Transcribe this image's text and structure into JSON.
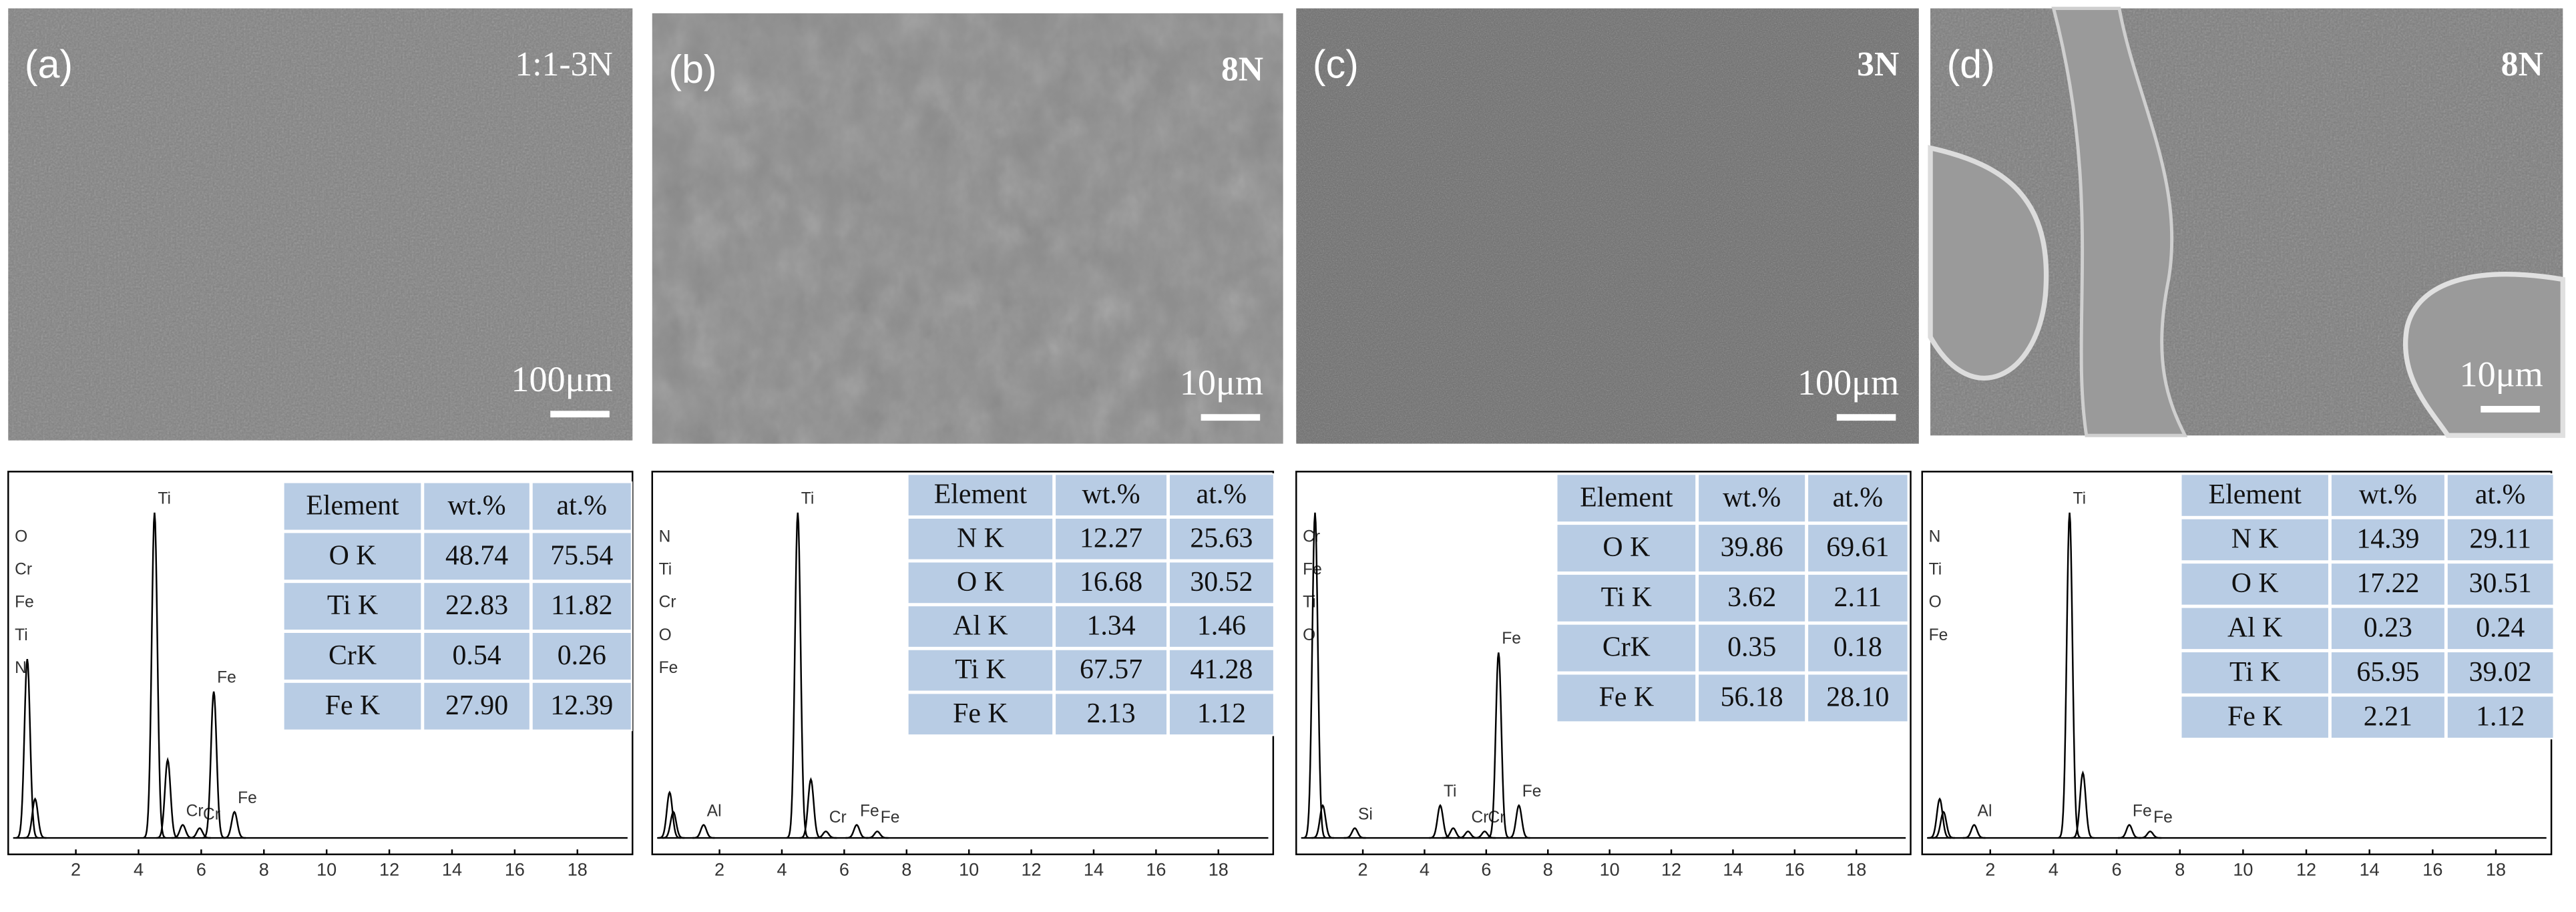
{
  "panels": [
    {
      "label": "(a)",
      "note": "1:1-3N",
      "scale": "100μm",
      "table": {
        "header": [
          "Element",
          "wt.%",
          "at.%"
        ],
        "rows": [
          [
            "O K",
            "48.74",
            "75.54"
          ],
          [
            "Ti K",
            "22.83",
            "11.82"
          ],
          [
            "CrK",
            "0.54",
            "0.26"
          ],
          [
            "Fe K",
            "27.90",
            "12.39"
          ]
        ]
      },
      "spectrum": {
        "xlim": [
          0,
          19.6
        ],
        "xticks": [
          2,
          4,
          6,
          8,
          10,
          12,
          14,
          16,
          18
        ],
        "left_labels": [
          "O",
          "Cr",
          "Fe",
          "Ti",
          "N"
        ],
        "peaks": [
          {
            "energy": 0.45,
            "height": 55
          },
          {
            "energy": 0.7,
            "height": 12
          },
          {
            "energy": 4.51,
            "height": 100,
            "label": "Ti"
          },
          {
            "energy": 4.93,
            "height": 24
          },
          {
            "energy": 5.41,
            "height": 4,
            "label": "Cr"
          },
          {
            "energy": 5.95,
            "height": 3,
            "label": "Cr"
          },
          {
            "energy": 6.4,
            "height": 45,
            "label": "Fe"
          },
          {
            "energy": 7.06,
            "height": 8,
            "label": "Fe"
          }
        ]
      }
    },
    {
      "label": "(b)",
      "note": "8N",
      "scale": "10μm",
      "table": {
        "header": [
          "Element",
          "wt.%",
          "at.%"
        ],
        "rows": [
          [
            "N K",
            "12.27",
            "25.63"
          ],
          [
            "O K",
            "16.68",
            "30.52"
          ],
          [
            "Al K",
            "1.34",
            "1.46"
          ],
          [
            "Ti K",
            "67.57",
            "41.28"
          ],
          [
            "Fe K",
            "2.13",
            "1.12"
          ]
        ]
      },
      "spectrum": {
        "xlim": [
          0,
          19.6
        ],
        "xticks": [
          2,
          4,
          6,
          8,
          10,
          12,
          14,
          16,
          18
        ],
        "left_labels": [
          "N",
          "Ti",
          "Cr",
          "O",
          "Fe"
        ],
        "peaks": [
          {
            "energy": 0.4,
            "height": 14
          },
          {
            "energy": 0.52,
            "height": 8
          },
          {
            "energy": 1.49,
            "height": 4,
            "label": "Al"
          },
          {
            "energy": 4.51,
            "height": 100,
            "label": "Ti"
          },
          {
            "energy": 4.93,
            "height": 18
          },
          {
            "energy": 5.41,
            "height": 2,
            "label": "Cr"
          },
          {
            "energy": 6.4,
            "height": 4,
            "label": "Fe"
          },
          {
            "energy": 7.06,
            "height": 2,
            "label": "Fe"
          }
        ]
      }
    },
    {
      "label": "(c)",
      "note": "3N",
      "scale": "100μm",
      "table": {
        "header": [
          "Element",
          "wt.%",
          "at.%"
        ],
        "rows": [
          [
            "O K",
            "39.86",
            "69.61"
          ],
          [
            "Ti K",
            "3.62",
            "2.11"
          ],
          [
            "CrK",
            "0.35",
            "0.18"
          ],
          [
            "Fe K",
            "56.18",
            "28.10"
          ]
        ]
      },
      "spectrum": {
        "xlim": [
          0,
          19.6
        ],
        "xticks": [
          2,
          4,
          6,
          8,
          10,
          12,
          14,
          16,
          18
        ],
        "left_labels": [
          "Cr",
          "Fe",
          "Ti",
          "O"
        ],
        "peaks": [
          {
            "energy": 0.45,
            "height": 100
          },
          {
            "energy": 0.7,
            "height": 10
          },
          {
            "energy": 1.74,
            "height": 3,
            "label": "Si"
          },
          {
            "energy": 4.51,
            "height": 10,
            "label": "Ti"
          },
          {
            "energy": 4.93,
            "height": 3
          },
          {
            "energy": 5.41,
            "height": 2,
            "label": "Cr"
          },
          {
            "energy": 5.95,
            "height": 2,
            "label": "Cr"
          },
          {
            "energy": 6.4,
            "height": 57,
            "label": "Fe"
          },
          {
            "energy": 7.06,
            "height": 10,
            "label": "Fe"
          }
        ]
      }
    },
    {
      "label": "(d)",
      "note": "8N",
      "scale": "10μm",
      "table": {
        "header": [
          "Element",
          "wt.%",
          "at.%"
        ],
        "rows": [
          [
            "N K",
            "14.39",
            "29.11"
          ],
          [
            "O K",
            "17.22",
            "30.51"
          ],
          [
            "Al K",
            "0.23",
            "0.24"
          ],
          [
            "Ti K",
            "65.95",
            "39.02"
          ],
          [
            "Fe K",
            "2.21",
            "1.12"
          ]
        ]
      },
      "spectrum": {
        "xlim": [
          0,
          19.6
        ],
        "xticks": [
          2,
          4,
          6,
          8,
          10,
          12,
          14,
          16,
          18
        ],
        "left_labels": [
          "N",
          "Ti",
          "O",
          "Fe"
        ],
        "peaks": [
          {
            "energy": 0.4,
            "height": 12
          },
          {
            "energy": 0.52,
            "height": 8
          },
          {
            "energy": 1.49,
            "height": 4,
            "label": "Al"
          },
          {
            "energy": 4.51,
            "height": 100,
            "label": "Ti"
          },
          {
            "energy": 4.93,
            "height": 20
          },
          {
            "energy": 6.4,
            "height": 4,
            "label": "Fe"
          },
          {
            "energy": 7.06,
            "height": 2,
            "label": "Fe"
          }
        ]
      }
    }
  ]
}
